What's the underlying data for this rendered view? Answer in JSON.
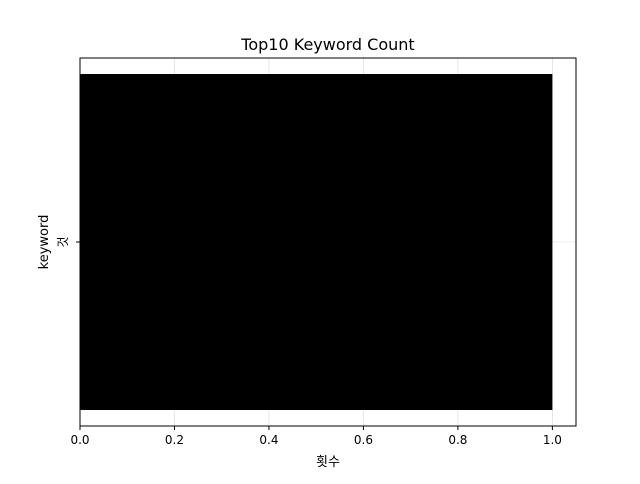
{
  "chart_data": {
    "type": "bar",
    "orientation": "horizontal",
    "title": "Top10 Keyword Count",
    "xlabel": "횟수",
    "ylabel": "keyword",
    "categories": [
      "것"
    ],
    "values": [
      1
    ],
    "xlim": [
      0,
      1.05
    ],
    "x_ticks": [
      0.0,
      0.2,
      0.4,
      0.6,
      0.8,
      1.0
    ],
    "x_tick_labels": [
      "0.0",
      "0.2",
      "0.4",
      "0.6",
      "0.8",
      "1.0"
    ],
    "grid": true,
    "bar_color": "#000000"
  }
}
